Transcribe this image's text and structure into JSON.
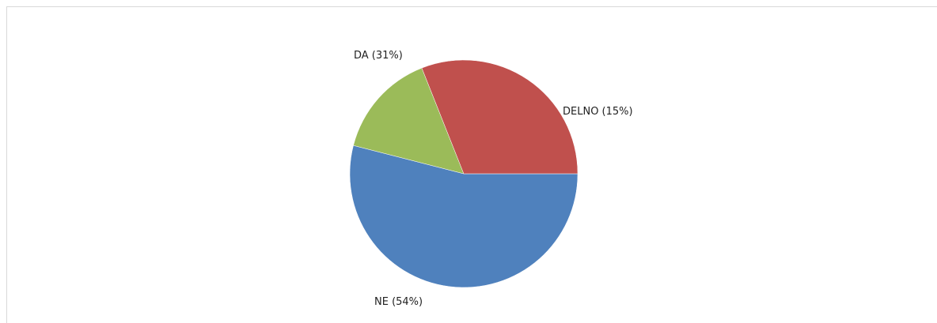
{
  "chart_data": {
    "type": "pie",
    "slices": [
      {
        "name": "NE",
        "value": 54,
        "label": "NE (54%)",
        "color": "#4f81bd"
      },
      {
        "name": "DELNO",
        "value": 15,
        "label": "DELNO (15%)",
        "color": "#9bbb59"
      },
      {
        "name": "DA",
        "value": 31,
        "label": "DA (31%)",
        "color": "#c0504d"
      }
    ],
    "legend": "none",
    "labels": "outside"
  }
}
